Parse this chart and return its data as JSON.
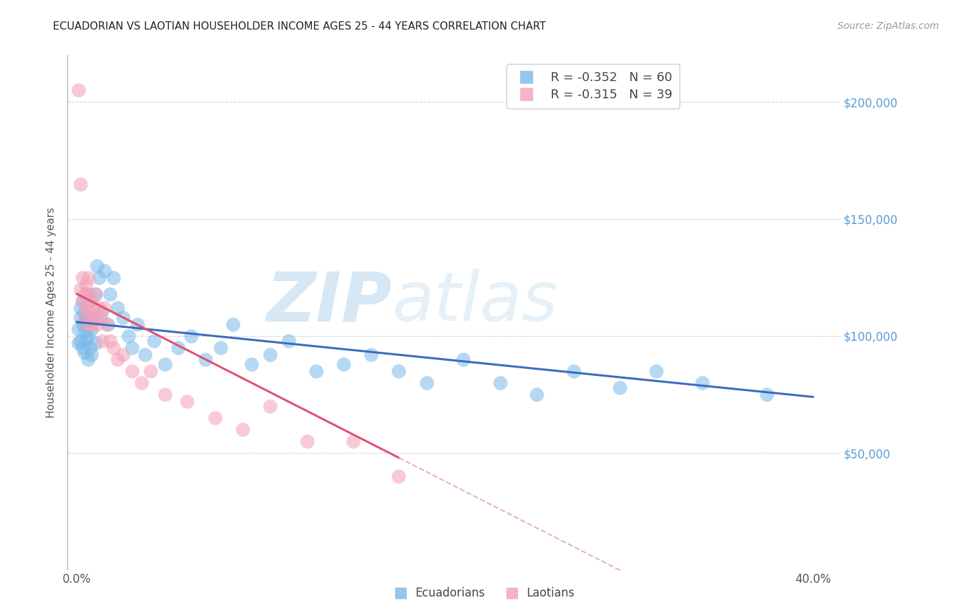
{
  "title": "ECUADORIAN VS LAOTIAN HOUSEHOLDER INCOME AGES 25 - 44 YEARS CORRELATION CHART",
  "source": "Source: ZipAtlas.com",
  "ylabel": "Householder Income Ages 25 - 44 years",
  "xlabel_ticks": [
    "0.0%",
    "",
    "",
    "",
    "",
    "",
    "",
    "",
    "40.0%"
  ],
  "xlabel_vals": [
    0.0,
    0.05,
    0.1,
    0.15,
    0.2,
    0.25,
    0.3,
    0.35,
    0.4
  ],
  "ylim": [
    0,
    220000
  ],
  "xlim": [
    -0.005,
    0.415
  ],
  "yticks": [
    50000,
    100000,
    150000,
    200000
  ],
  "ytick_labels": [
    "$50,000",
    "$100,000",
    "$150,000",
    "$200,000"
  ],
  "blue_color": "#7ab8e8",
  "pink_color": "#f4a0b8",
  "trendline_blue": "#3a6bbf",
  "trendline_pink": "#e05070",
  "trendline_pink_dashed": "#e8b0c0",
  "legend_R1": "R = -0.352",
  "legend_N1": "N = 60",
  "legend_R2": "R = -0.315",
  "legend_N2": "N = 39",
  "watermark_zip": "ZIP",
  "watermark_atlas": "atlas",
  "ecuadorians_x": [
    0.001,
    0.001,
    0.002,
    0.002,
    0.002,
    0.003,
    0.003,
    0.003,
    0.004,
    0.004,
    0.004,
    0.005,
    0.005,
    0.005,
    0.006,
    0.006,
    0.007,
    0.007,
    0.007,
    0.008,
    0.008,
    0.009,
    0.01,
    0.01,
    0.011,
    0.012,
    0.013,
    0.015,
    0.017,
    0.018,
    0.02,
    0.022,
    0.025,
    0.028,
    0.03,
    0.033,
    0.037,
    0.042,
    0.048,
    0.055,
    0.062,
    0.07,
    0.078,
    0.085,
    0.095,
    0.105,
    0.115,
    0.13,
    0.145,
    0.16,
    0.175,
    0.19,
    0.21,
    0.23,
    0.25,
    0.27,
    0.295,
    0.315,
    0.34,
    0.375
  ],
  "ecuadorians_y": [
    103000,
    97000,
    112000,
    98000,
    108000,
    105000,
    95000,
    115000,
    102000,
    110000,
    93000,
    107000,
    98000,
    118000,
    100000,
    90000,
    108000,
    95000,
    115000,
    103000,
    92000,
    108000,
    97000,
    118000,
    130000,
    125000,
    110000,
    128000,
    105000,
    118000,
    125000,
    112000,
    108000,
    100000,
    95000,
    105000,
    92000,
    98000,
    88000,
    95000,
    100000,
    90000,
    95000,
    105000,
    88000,
    92000,
    98000,
    85000,
    88000,
    92000,
    85000,
    80000,
    90000,
    80000,
    75000,
    85000,
    78000,
    85000,
    80000,
    75000
  ],
  "laotians_x": [
    0.001,
    0.002,
    0.002,
    0.003,
    0.003,
    0.004,
    0.004,
    0.005,
    0.005,
    0.006,
    0.006,
    0.006,
    0.007,
    0.007,
    0.008,
    0.009,
    0.01,
    0.01,
    0.011,
    0.012,
    0.013,
    0.014,
    0.015,
    0.016,
    0.018,
    0.02,
    0.022,
    0.025,
    0.03,
    0.035,
    0.04,
    0.048,
    0.06,
    0.075,
    0.09,
    0.105,
    0.125,
    0.15,
    0.175
  ],
  "laotians_y": [
    205000,
    165000,
    120000,
    125000,
    115000,
    118000,
    108000,
    122000,
    112000,
    118000,
    105000,
    125000,
    110000,
    115000,
    105000,
    112000,
    108000,
    118000,
    105000,
    112000,
    108000,
    98000,
    112000,
    105000,
    98000,
    95000,
    90000,
    92000,
    85000,
    80000,
    85000,
    75000,
    72000,
    65000,
    60000,
    70000,
    55000,
    55000,
    40000
  ]
}
